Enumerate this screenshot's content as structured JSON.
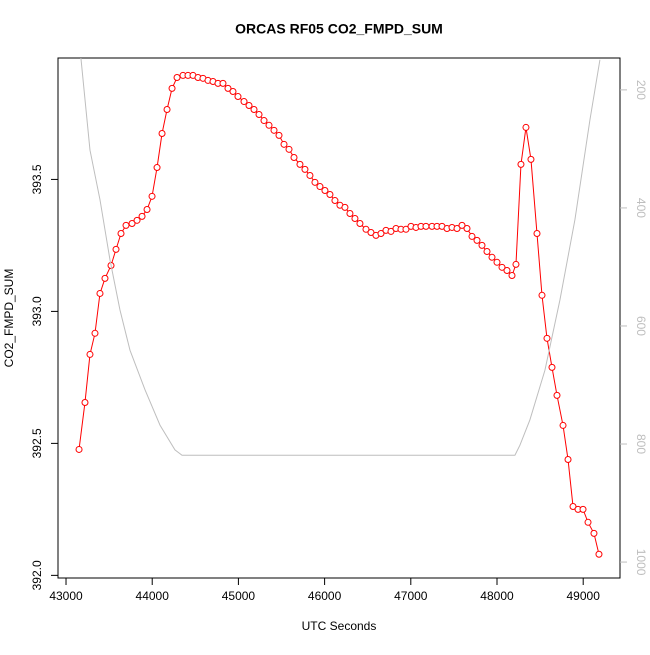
{
  "chart_data": {
    "type": "line",
    "title": "ORCAS RF05 CO2_FMPD_SUM",
    "xlabel": "UTC Seconds",
    "ylabel": "CO2_FMPD_SUM",
    "xlim": [
      42907,
      49427
    ],
    "ylim": [
      391.99,
      393.96
    ],
    "y2lim": [
      1027,
      146
    ],
    "xticks": [
      43000,
      44000,
      45000,
      46000,
      47000,
      48000,
      49000
    ],
    "yticks": [
      {
        "value": 392,
        "label": "392.0"
      },
      392.5,
      {
        "value": 393,
        "label": "393.0"
      },
      393.5
    ],
    "y2ticks": [
      200,
      400,
      600,
      800,
      1000
    ],
    "series": [
      {
        "color": "#ff0000",
        "markers": true,
        "x": [
          43151,
          43220,
          43278,
          43336,
          43394,
          43452,
          43522,
          43580,
          43638,
          43696,
          43766,
          43824,
          43882,
          43940,
          43998,
          44056,
          44114,
          44172,
          44230,
          44288,
          44357,
          44415,
          44473,
          44531,
          44589,
          44647,
          44705,
          44763,
          44821,
          44879,
          44937,
          44995,
          45065,
          45123,
          45181,
          45239,
          45297,
          45355,
          45413,
          45471,
          45529,
          45587,
          45645,
          45714,
          45772,
          45830,
          45888,
          45946,
          46004,
          46062,
          46120,
          46178,
          46236,
          46294,
          46352,
          46410,
          46480,
          46538,
          46596,
          46654,
          46712,
          46770,
          46828,
          46886,
          46944,
          47002,
          47060,
          47118,
          47176,
          47246,
          47304,
          47362,
          47420,
          47478,
          47536,
          47594,
          47652,
          47710,
          47768,
          47826,
          47884,
          47942,
          48000,
          48058,
          48116,
          48174,
          48220,
          48278,
          48336,
          48394,
          48464,
          48522,
          48580,
          48638,
          48696,
          48766,
          48824,
          48882,
          48940,
          48998,
          49056,
          49125,
          49183
        ],
        "values": [
          392.477,
          392.655,
          392.837,
          392.917,
          393.068,
          393.125,
          393.174,
          393.235,
          393.295,
          393.326,
          393.333,
          393.345,
          393.36,
          393.386,
          393.436,
          393.545,
          393.674,
          393.765,
          393.845,
          393.886,
          393.894,
          393.894,
          393.894,
          393.886,
          393.883,
          393.875,
          393.871,
          393.864,
          393.864,
          393.845,
          393.833,
          393.814,
          393.795,
          393.78,
          393.765,
          393.746,
          393.723,
          393.705,
          393.686,
          393.667,
          393.633,
          393.614,
          393.583,
          393.557,
          393.538,
          393.515,
          393.489,
          393.473,
          393.458,
          393.443,
          393.42,
          393.402,
          393.394,
          393.371,
          393.352,
          393.333,
          393.311,
          393.299,
          393.288,
          393.295,
          393.307,
          393.303,
          393.314,
          393.311,
          393.311,
          393.322,
          393.318,
          393.322,
          393.322,
          393.322,
          393.322,
          393.322,
          393.314,
          393.318,
          393.314,
          393.326,
          393.314,
          393.284,
          393.269,
          393.25,
          393.227,
          393.205,
          393.186,
          393.167,
          393.155,
          393.136,
          393.178,
          393.557,
          393.697,
          393.576,
          393.295,
          393.061,
          392.898,
          392.788,
          392.682,
          392.568,
          392.439,
          392.261,
          392.25,
          392.25,
          392.201,
          392.159,
          392.08
        ]
      },
      {
        "color": "#bebebe",
        "axis": "y2",
        "markers": false,
        "x": [
          43162,
          43278,
          43394,
          43510,
          43626,
          43742,
          43916,
          44090,
          44264,
          44346,
          48208,
          48266,
          48382,
          48556,
          48730,
          48904,
          49078,
          49194
        ],
        "values": [
          130,
          302,
          386,
          488,
          573,
          641,
          708,
          768,
          810,
          819,
          819,
          802,
          759,
          675,
          556,
          420,
          251,
          149
        ]
      }
    ]
  }
}
